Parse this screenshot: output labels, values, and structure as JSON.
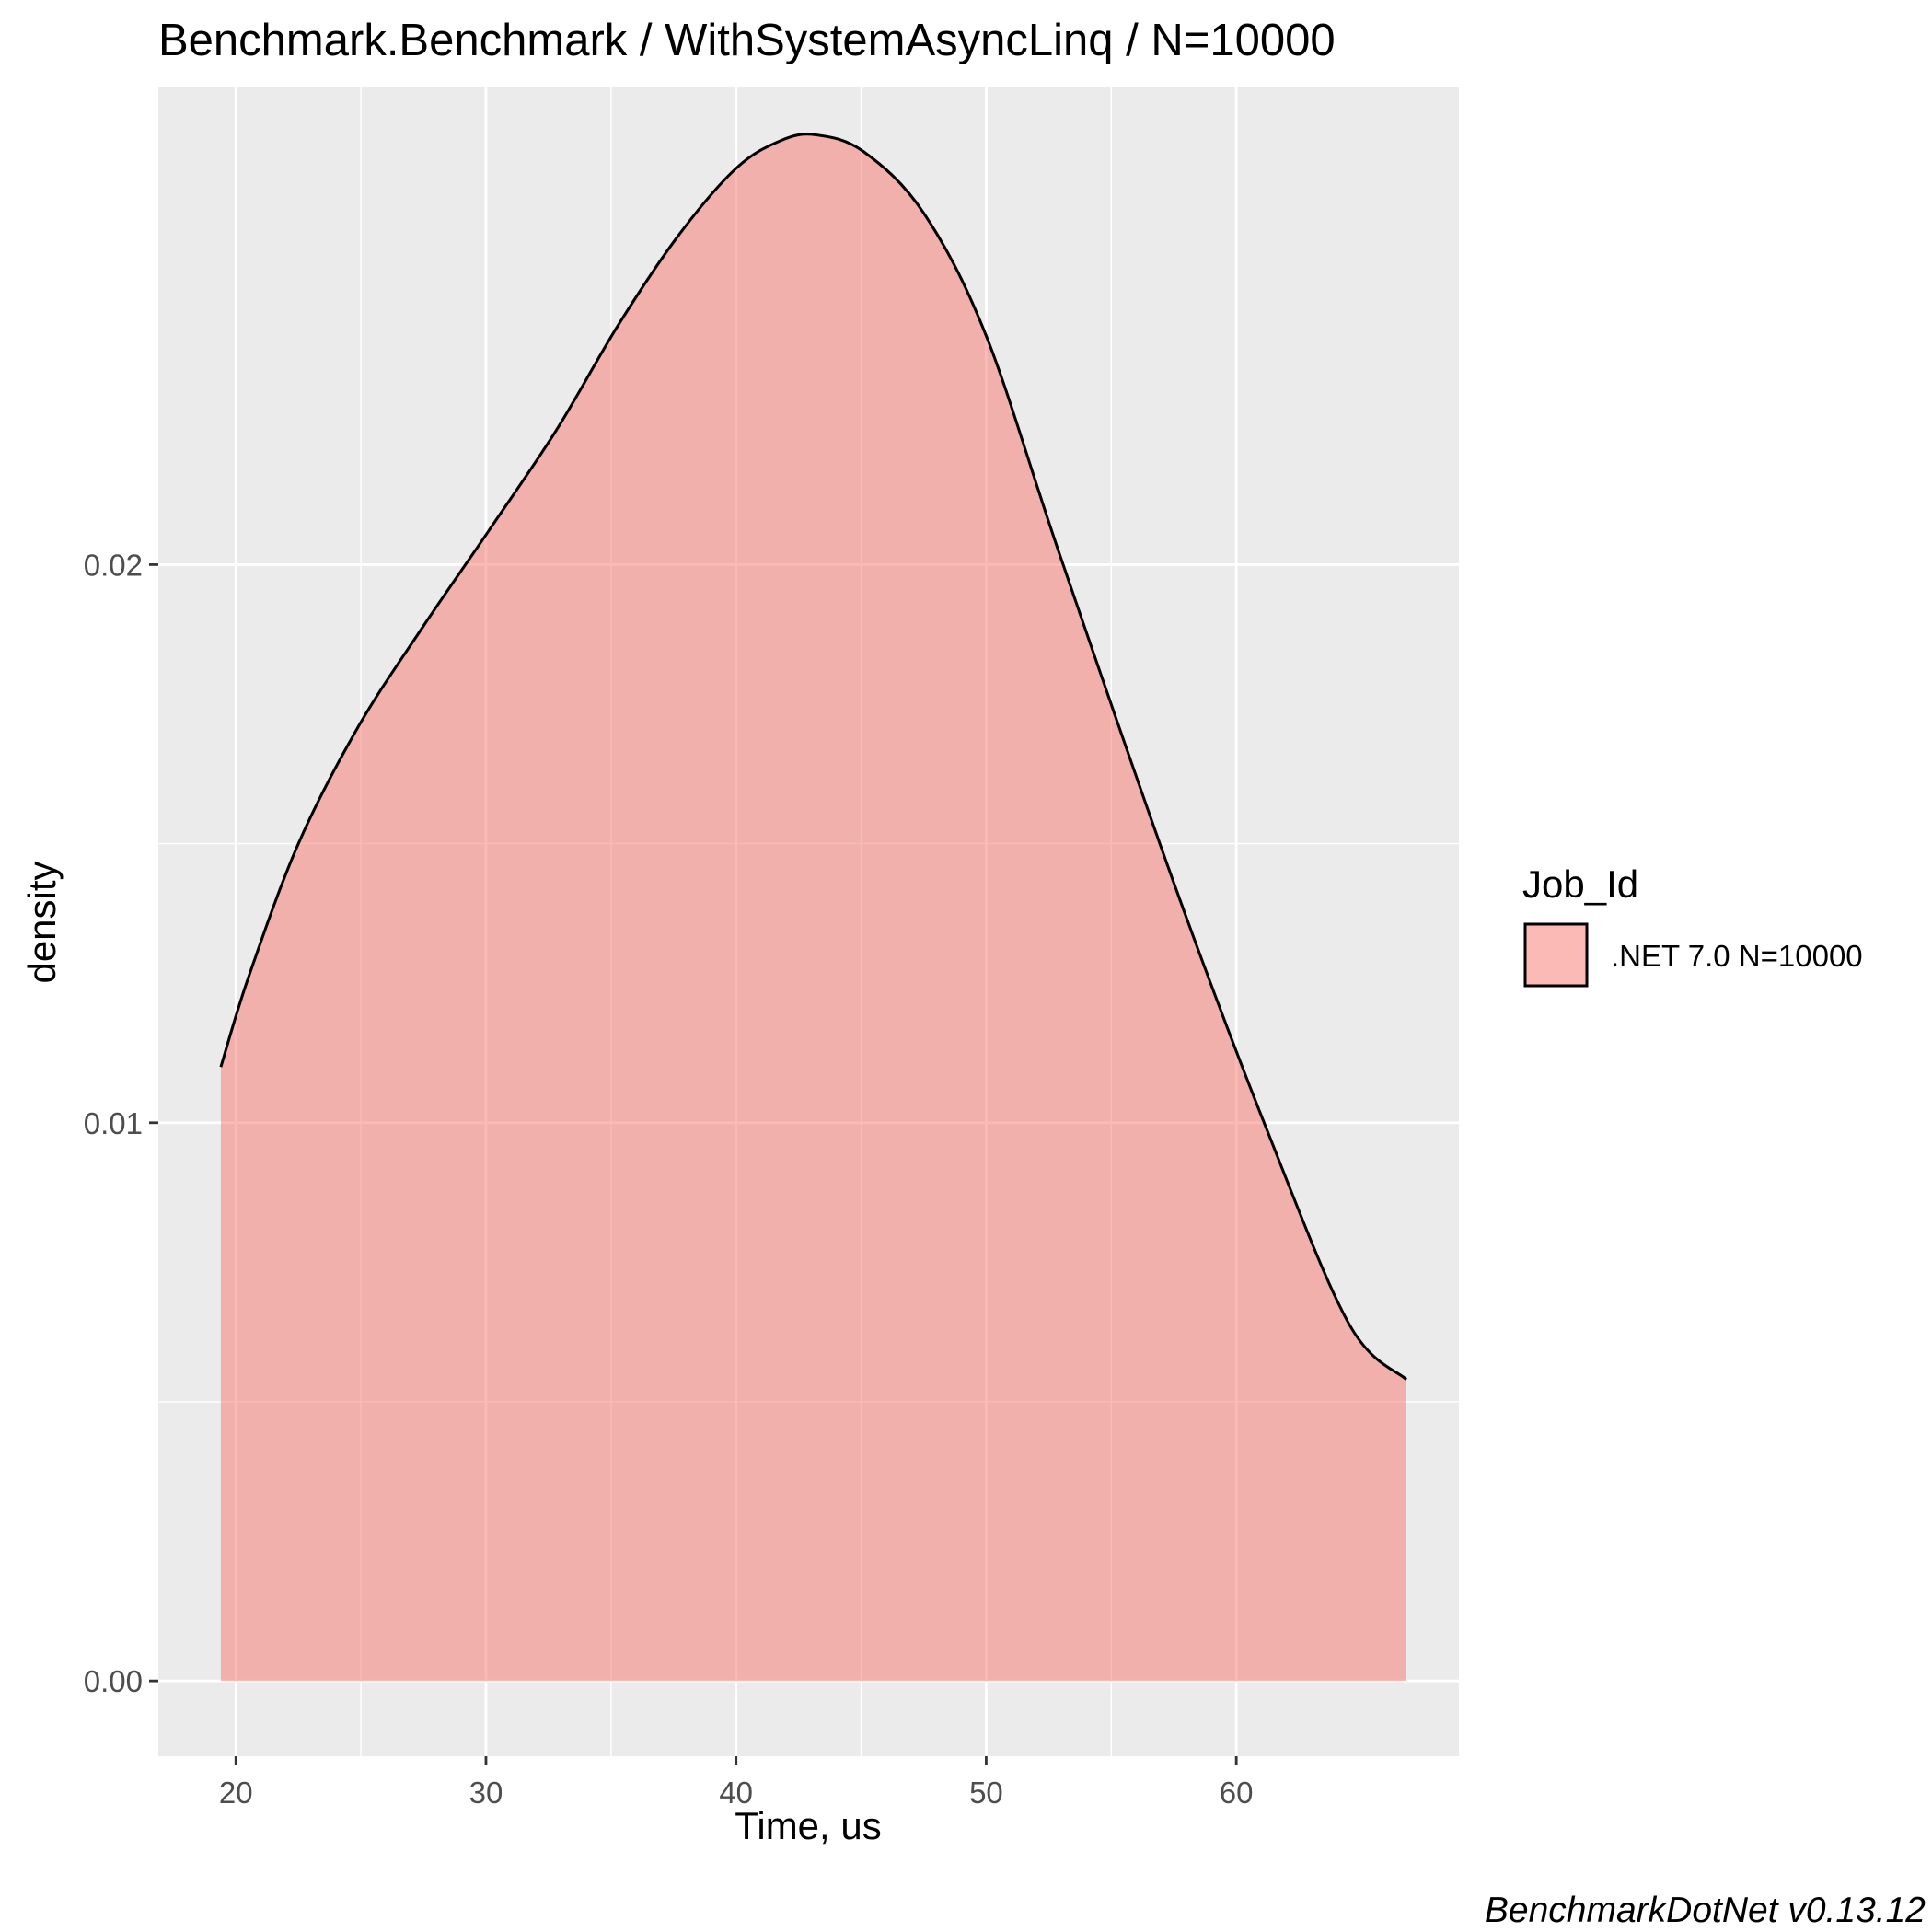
{
  "chart_data": {
    "type": "area",
    "title": "Benchmark.Benchmark / WithSystemAsyncLinq / N=10000",
    "xlabel": "Time, us",
    "ylabel": "density",
    "caption": "BenchmarkDotNet v0.13.12",
    "xlim": [
      16.9,
      68.9
    ],
    "ylim": [
      -0.00135,
      0.02855
    ],
    "x_ticks": [
      20,
      30,
      40,
      50,
      60
    ],
    "x_tick_labels": [
      "20",
      "30",
      "40",
      "50",
      "60"
    ],
    "y_ticks": [
      0.0,
      0.01,
      0.02
    ],
    "y_tick_labels": [
      "0.00",
      "0.01",
      "0.02"
    ],
    "grid": true,
    "background": "#ebebeb",
    "legend": {
      "title": "Job_Id",
      "position": "right",
      "entries": [
        ".NET 7.0 N=10000"
      ]
    },
    "series": [
      {
        "name": ".NET 7.0 N=10000",
        "fill": "#f8766d",
        "fill_opacity": 0.5,
        "line_color": "#000000",
        "x": [
          19.4,
          20.5,
          22.5,
          24.9,
          27.5,
          30.1,
          32.8,
          35.3,
          37.7,
          40.0,
          41.8,
          43.2,
          45.1,
          47.5,
          50.0,
          53.0,
          57.5,
          61.2,
          64.5,
          66.8
        ],
        "y": [
          0.011,
          0.0126,
          0.015,
          0.0171,
          0.0189,
          0.0206,
          0.0224,
          0.0243,
          0.0259,
          0.0271,
          0.0276,
          0.0277,
          0.0274,
          0.0263,
          0.0241,
          0.0201,
          0.0143,
          0.0099,
          0.0064,
          0.0054
        ]
      }
    ]
  }
}
